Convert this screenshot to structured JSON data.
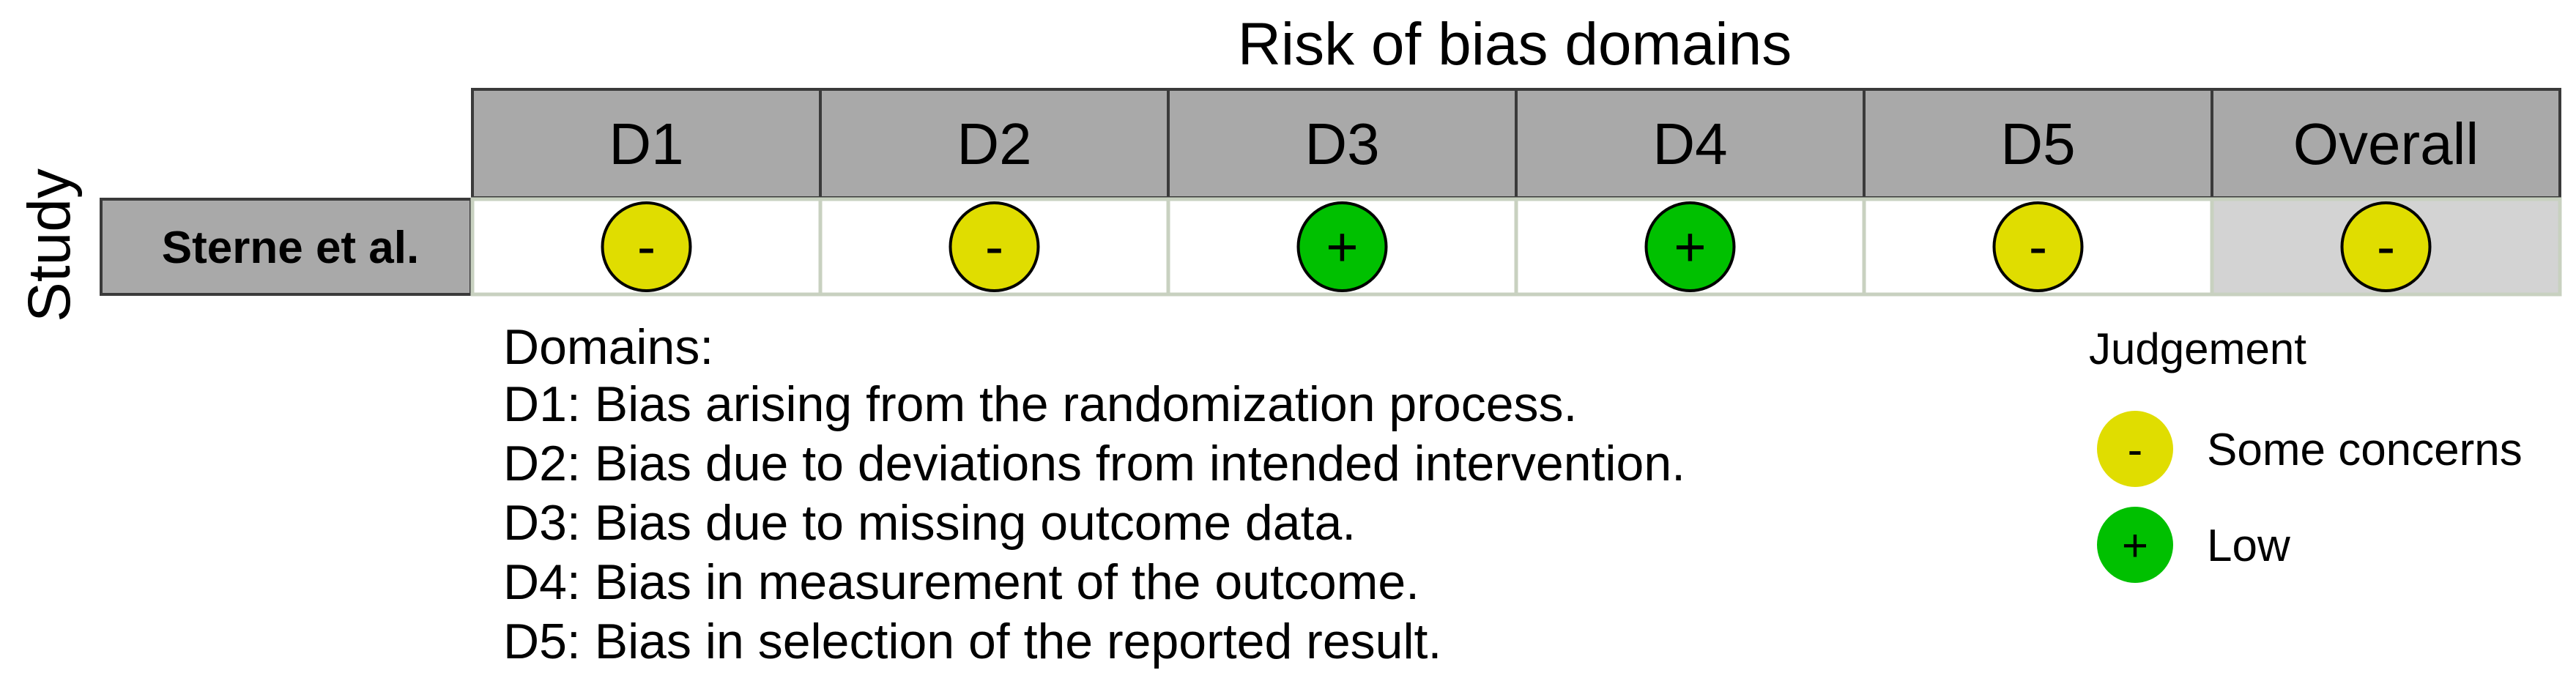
{
  "chart_data": {
    "type": "table",
    "title": "Risk of bias domains",
    "row_axis_label": "Study",
    "columns": [
      "D1",
      "D2",
      "D3",
      "D4",
      "D5",
      "Overall"
    ],
    "rows": [
      {
        "study": "Sterne et al.",
        "judgements": [
          "Some concerns",
          "Some concerns",
          "Low",
          "Low",
          "Some concerns",
          "Some concerns"
        ],
        "symbols": [
          "-",
          "-",
          "+",
          "+",
          "-",
          "-"
        ]
      }
    ],
    "domains_heading": "Domains:",
    "domain_descriptions": [
      "D1: Bias arising from the randomization process.",
      "D2: Bias due to deviations from intended intervention.",
      "D3: Bias due to missing outcome data.",
      "D4: Bias in measurement of the outcome.",
      "D5: Bias in selection of the reported result."
    ],
    "legend": {
      "title": "Judgement",
      "items": [
        {
          "label": "Some concerns",
          "symbol": "-",
          "color": "#e0dd00"
        },
        {
          "label": "Low",
          "symbol": "+",
          "color": "#00c000"
        }
      ]
    },
    "colors": {
      "header_fill": "#a9a9a9",
      "overall_cell_fill": "#d3d3d3",
      "cell_border": "#c8d1c0"
    }
  }
}
